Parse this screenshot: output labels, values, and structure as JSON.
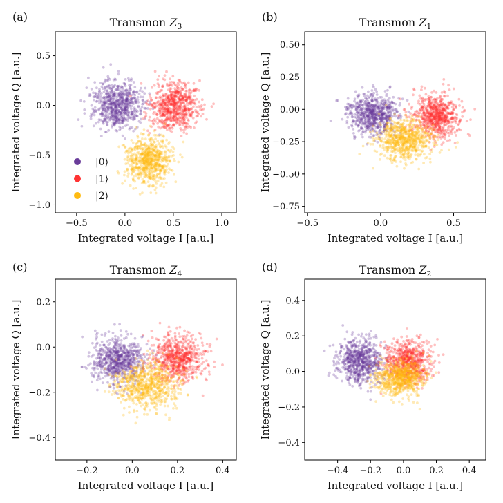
{
  "figure": {
    "legend": [
      {
        "label": "|0⟩",
        "color": "#6a3d9a"
      },
      {
        "label": "|1⟩",
        "color": "#ff3333"
      },
      {
        "label": "|2⟩",
        "color": "#ffbb11"
      }
    ]
  },
  "chart_data": [
    {
      "type": "scatter",
      "panel": "(a)",
      "title": "Transmon Z3",
      "title_main": "Transmon ",
      "title_sym": "Z",
      "title_sub": "3",
      "xlabel": "Integrated voltage I [a.u.]",
      "ylabel": "Integrated voltage Q [a.u.]",
      "xlim": [
        -0.72,
        1.15
      ],
      "ylim": [
        -1.08,
        0.74
      ],
      "xticks": [
        -0.5,
        0.0,
        0.5,
        1.0
      ],
      "xtick_labels": [
        "−0.5",
        "0.0",
        "0.5",
        "1.0"
      ],
      "yticks": [
        -1.0,
        -0.5,
        0.0,
        0.5
      ],
      "ytick_labels": [
        "−1.0",
        "−0.5",
        "0.0",
        "0.5"
      ],
      "has_legend": true,
      "series": [
        {
          "name": "|0⟩",
          "color": "#6a3d9a",
          "center": [
            -0.08,
            0.0
          ],
          "spread": [
            0.13,
            0.12
          ],
          "n": 700
        },
        {
          "name": "|1⟩",
          "color": "#ff3333",
          "center": [
            0.5,
            0.0
          ],
          "spread": [
            0.13,
            0.12
          ],
          "n": 700
        },
        {
          "name": "|2⟩",
          "color": "#ffbb11",
          "center": [
            0.25,
            -0.55
          ],
          "spread": [
            0.12,
            0.12
          ],
          "n": 700
        }
      ]
    },
    {
      "type": "scatter",
      "panel": "(b)",
      "title": "Transmon Z1",
      "title_main": "Transmon ",
      "title_sym": "Z",
      "title_sub": "1",
      "xlabel": "Integrated voltage I [a.u.]",
      "ylabel": "Integrated voltage Q [a.u.]",
      "xlim": [
        -0.52,
        0.72
      ],
      "ylim": [
        -0.8,
        0.6
      ],
      "xticks": [
        -0.5,
        0.0,
        0.5
      ],
      "xtick_labels": [
        "−0.5",
        "0.0",
        "0.5"
      ],
      "yticks": [
        -0.75,
        -0.5,
        -0.25,
        0.0,
        0.25,
        0.5
      ],
      "ytick_labels": [
        "−0.75",
        "−0.50",
        "−0.25",
        "0.00",
        "0.25",
        "0.50"
      ],
      "has_legend": false,
      "series": [
        {
          "name": "|0⟩",
          "color": "#6a3d9a",
          "center": [
            -0.05,
            -0.04
          ],
          "spread": [
            0.08,
            0.08
          ],
          "n": 700
        },
        {
          "name": "|1⟩",
          "color": "#ff3333",
          "center": [
            0.38,
            -0.05
          ],
          "spread": [
            0.08,
            0.08
          ],
          "n": 700
        },
        {
          "name": "|2⟩",
          "color": "#ffbb11",
          "center": [
            0.17,
            -0.23
          ],
          "spread": [
            0.09,
            0.08
          ],
          "n": 700
        }
      ]
    },
    {
      "type": "scatter",
      "panel": "(c)",
      "title": "Transmon Z4",
      "title_main": "Transmon ",
      "title_sym": "Z",
      "title_sub": "4",
      "xlabel": "Integrated voltage I [a.u.]",
      "ylabel": "Integrated voltage Q [a.u.]",
      "xlim": [
        -0.34,
        0.46
      ],
      "ylim": [
        -0.5,
        0.3
      ],
      "xticks": [
        -0.2,
        0.0,
        0.2,
        0.4
      ],
      "xtick_labels": [
        "−0.2",
        "0.0",
        "0.2",
        "0.4"
      ],
      "yticks": [
        -0.4,
        -0.2,
        0.0,
        0.2
      ],
      "ytick_labels": [
        "−0.4",
        "−0.2",
        "0.0",
        "0.2"
      ],
      "has_legend": false,
      "series": [
        {
          "name": "|0⟩",
          "color": "#6a3d9a",
          "center": [
            -0.06,
            -0.06
          ],
          "spread": [
            0.06,
            0.05
          ],
          "n": 700
        },
        {
          "name": "|1⟩",
          "color": "#ff3333",
          "center": [
            0.2,
            -0.05
          ],
          "spread": [
            0.06,
            0.05
          ],
          "n": 700
        },
        {
          "name": "|2⟩",
          "color": "#ffbb11",
          "center": [
            0.07,
            -0.17
          ],
          "spread": [
            0.07,
            0.05
          ],
          "n": 700
        }
      ]
    },
    {
      "type": "scatter",
      "panel": "(d)",
      "title": "Transmon Z2",
      "title_main": "Transmon ",
      "title_sym": "Z",
      "title_sub": "2",
      "xlabel": "Integrated voltage I [a.u.]",
      "ylabel": "Integrated voltage Q [a.u.]",
      "xlim": [
        -0.6,
        0.5
      ],
      "ylim": [
        -0.5,
        0.52
      ],
      "xticks": [
        -0.4,
        -0.2,
        0.0,
        0.2,
        0.4
      ],
      "xtick_labels": [
        "−0.4",
        "−0.2",
        "0.0",
        "0.2",
        "0.4"
      ],
      "yticks": [
        -0.4,
        -0.2,
        0.0,
        0.2,
        0.4
      ],
      "ytick_labels": [
        "−0.4",
        "−0.2",
        "0.0",
        "0.2",
        "0.4"
      ],
      "has_legend": false,
      "series": [
        {
          "name": "|0⟩",
          "color": "#6a3d9a",
          "center": [
            -0.26,
            0.06
          ],
          "spread": [
            0.07,
            0.06
          ],
          "n": 700
        },
        {
          "name": "|1⟩",
          "color": "#ff3333",
          "center": [
            0.03,
            0.05
          ],
          "spread": [
            0.07,
            0.06
          ],
          "n": 700
        },
        {
          "name": "|2⟩",
          "color": "#ffbb11",
          "center": [
            -0.02,
            -0.04
          ],
          "spread": [
            0.07,
            0.05
          ],
          "n": 700
        }
      ]
    }
  ]
}
